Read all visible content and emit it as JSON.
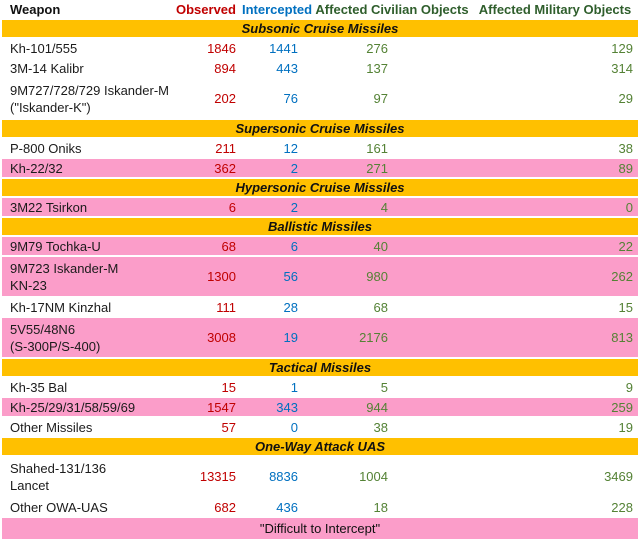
{
  "colors": {
    "section_band": "#FFC000",
    "highlight_pink": "#FB9DC9",
    "observed_red": "#C00000",
    "intercepted_blue": "#0070C0",
    "affected_green_header": "#2F5E2C",
    "affected_green_value": "#548235",
    "row_white": "#FFFFFF",
    "text_black": "#1B1B1B"
  },
  "header": {
    "weapon": "Weapon",
    "observed": "Observed",
    "intercepted": "Intercepted",
    "civilian": "Affected Civilian Objects",
    "military": "Affected Military Objects"
  },
  "legend": "\"Difficult to Intercept\"",
  "sections": [
    {
      "title": "Subsonic Cruise Missiles",
      "rows": [
        {
          "weapon": [
            "Kh-101/555"
          ],
          "observed": "1846",
          "intercepted": "1441",
          "civilian": "276",
          "military": "129",
          "pink": false
        },
        {
          "weapon": [
            "3M-14 Kalibr"
          ],
          "observed": "894",
          "intercepted": "443",
          "civilian": "137",
          "military": "314",
          "pink": false
        },
        {
          "weapon": [
            "9M727/728/729 Iskander-M",
            "(\"Iskander-K\")"
          ],
          "observed": "202",
          "intercepted": "76",
          "civilian": "97",
          "military": "29",
          "pink": false
        }
      ]
    },
    {
      "title": "Supersonic Cruise Missiles",
      "rows": [
        {
          "weapon": [
            "P-800 Oniks"
          ],
          "observed": "211",
          "intercepted": "12",
          "civilian": "161",
          "military": "38",
          "pink": false
        },
        {
          "weapon": [
            "Kh-22/32"
          ],
          "observed": "362",
          "intercepted": "2",
          "civilian": "271",
          "military": "89",
          "pink": true
        }
      ]
    },
    {
      "title": "Hypersonic Cruise Missiles",
      "rows": [
        {
          "weapon": [
            "3M22 Tsirkon"
          ],
          "observed": "6",
          "intercepted": "2",
          "civilian": "4",
          "military": "0",
          "pink": true
        }
      ]
    },
    {
      "title": "Ballistic Missiles",
      "rows": [
        {
          "weapon": [
            "9M79 Tochka-U"
          ],
          "observed": "68",
          "intercepted": "6",
          "civilian": "40",
          "military": "22",
          "pink": true
        },
        {
          "weapon": [
            "9M723 Iskander-M",
            "KN-23"
          ],
          "observed": "1300",
          "intercepted": "56",
          "civilian": "980",
          "military": "262",
          "pink": true
        },
        {
          "weapon": [
            "Kh-17NM Kinzhal"
          ],
          "observed": "111",
          "intercepted": "28",
          "civilian": "68",
          "military": "15",
          "pink": false
        },
        {
          "weapon": [
            "5V55/48N6",
            "(S-300P/S-400)"
          ],
          "observed": "3008",
          "intercepted": "19",
          "civilian": "2176",
          "military": "813",
          "pink": true
        }
      ]
    },
    {
      "title": "Tactical Missiles",
      "rows": [
        {
          "weapon": [
            "Kh-35 Bal"
          ],
          "observed": "15",
          "intercepted": "1",
          "civilian": "5",
          "military": "9",
          "pink": false
        },
        {
          "weapon": [
            "Kh-25/29/31/58/59/69"
          ],
          "observed": "1547",
          "intercepted": "343",
          "civilian": "944",
          "military": "259",
          "pink": true
        },
        {
          "weapon": [
            "Other Missiles"
          ],
          "observed": "57",
          "intercepted": "0",
          "civilian": "38",
          "military": "19",
          "pink": false
        }
      ]
    },
    {
      "title": "One-Way Attack UAS",
      "rows": [
        {
          "weapon": [
            "Shahed-131/136",
            "Lancet"
          ],
          "observed": "13315",
          "intercepted": "8836",
          "civilian": "1004",
          "military": "3469",
          "pink": false
        },
        {
          "weapon": [
            "Other OWA-UAS"
          ],
          "observed": "682",
          "intercepted": "436",
          "civilian": "18",
          "military": "228",
          "pink": false
        }
      ]
    }
  ],
  "chart_data": {
    "type": "table",
    "title": "",
    "columns": [
      "Weapon",
      "Observed",
      "Intercepted",
      "Affected Civilian Objects",
      "Affected Military Objects"
    ],
    "rows": [
      [
        "Kh-101/555",
        1846,
        1441,
        276,
        129
      ],
      [
        "3M-14 Kalibr",
        894,
        443,
        137,
        314
      ],
      [
        "9M727/728/729 Iskander-M (\"Iskander-K\")",
        202,
        76,
        97,
        29
      ],
      [
        "P-800 Oniks",
        211,
        12,
        161,
        38
      ],
      [
        "Kh-22/32",
        362,
        2,
        271,
        89
      ],
      [
        "3M22 Tsirkon",
        6,
        2,
        4,
        0
      ],
      [
        "9M79 Tochka-U",
        68,
        6,
        40,
        22
      ],
      [
        "9M723 Iskander-M KN-23",
        1300,
        56,
        980,
        262
      ],
      [
        "Kh-17NM Kinzhal",
        111,
        28,
        68,
        15
      ],
      [
        "5V55/48N6 (S-300P/S-400)",
        3008,
        19,
        2176,
        813
      ],
      [
        "Kh-35 Bal",
        15,
        1,
        5,
        9
      ],
      [
        "Kh-25/29/31/58/59/69",
        1547,
        343,
        944,
        259
      ],
      [
        "Other Missiles",
        57,
        0,
        38,
        19
      ],
      [
        "Shahed-131/136 Lancet",
        13315,
        8836,
        1004,
        3469
      ],
      [
        "Other OWA-UAS",
        682,
        436,
        18,
        228
      ]
    ],
    "groups": [
      "Subsonic Cruise Missiles",
      "Supersonic Cruise Missiles",
      "Hypersonic Cruise Missiles",
      "Ballistic Missiles",
      "Tactical Missiles",
      "One-Way Attack UAS"
    ],
    "highlight_legend": "\"Difficult to Intercept\" rows shown in pink"
  }
}
